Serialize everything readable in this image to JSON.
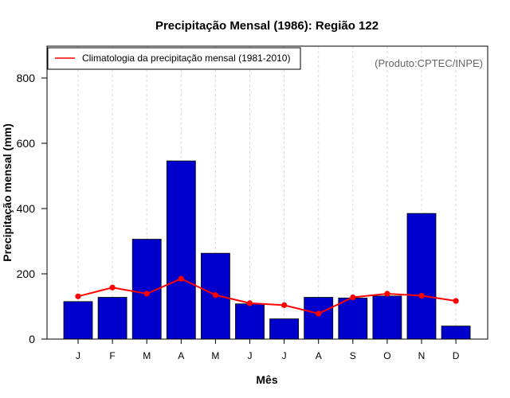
{
  "chart_data": {
    "type": "bar",
    "title": "Precipitação Mensal (1986): Região 122",
    "xlabel": "Mês",
    "ylabel": "Precipitação mensal (mm)",
    "categories": [
      "J",
      "F",
      "M",
      "A",
      "M",
      "J",
      "J",
      "A",
      "S",
      "O",
      "N",
      "D"
    ],
    "series": [
      {
        "name": "Precipitação mensal (1986)",
        "kind": "bar",
        "color": "#0000cc",
        "values": [
          115,
          128,
          306,
          546,
          263,
          108,
          62,
          128,
          126,
          132,
          385,
          40
        ]
      },
      {
        "name": "Climatologia da precipitação mensal (1981-2010)",
        "kind": "line",
        "color": "#ff0000",
        "values": [
          131,
          158,
          139,
          185,
          135,
          110,
          104,
          78,
          128,
          139,
          133,
          117
        ]
      }
    ],
    "ylim": [
      0,
      900
    ],
    "yticks": [
      0,
      200,
      400,
      600,
      800
    ],
    "grid": "vertical dashed",
    "legend": "top-left",
    "credit": "(Produto:CPTEC/INPE)"
  }
}
